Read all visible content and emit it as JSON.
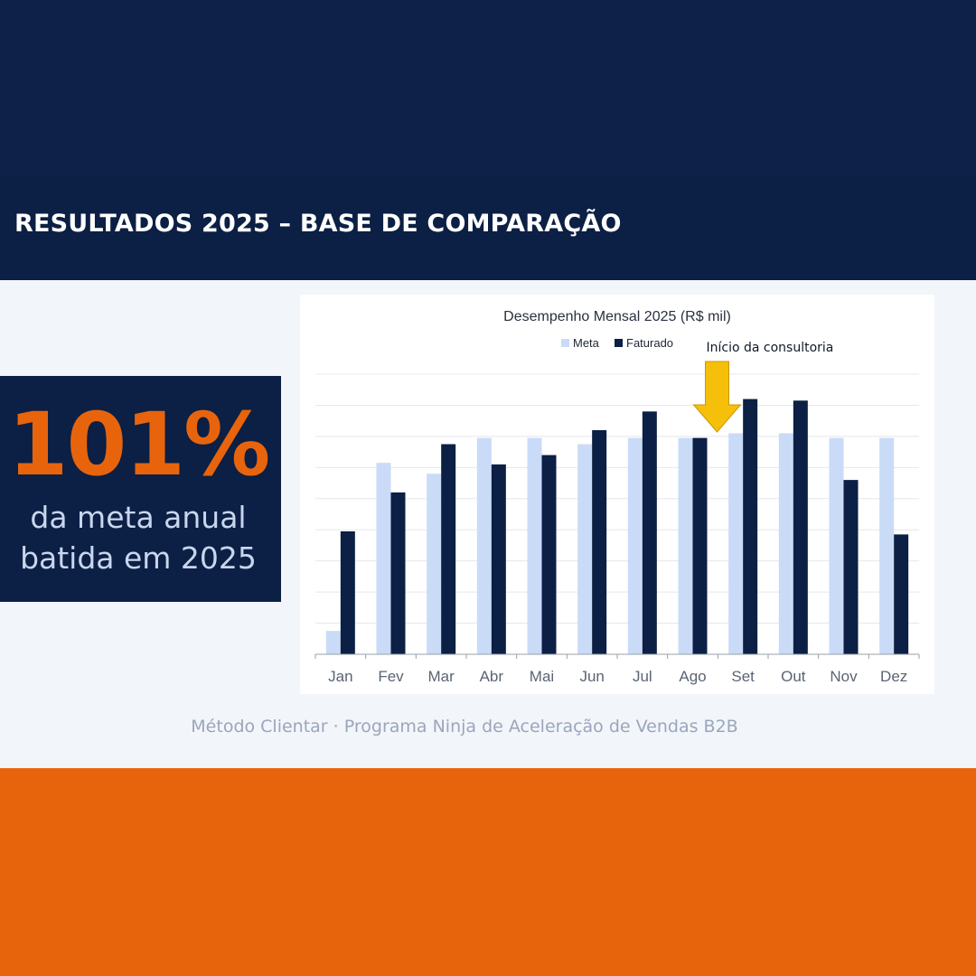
{
  "header": {
    "title": "RESULTADOS 2025 – BASE DE COMPARAÇÃO"
  },
  "kpi": {
    "value": "101%",
    "caption_line1": "da meta anual",
    "caption_line2": "batida em 2025"
  },
  "footer": {
    "text": "Método Clientar · Programa Ninja de Aceleração de Vendas B2B"
  },
  "colors": {
    "navy": "#0c1f44",
    "orange": "#e8640c",
    "meta": "#c9dbf7",
    "faturado": "#0c1f44",
    "arrow": "#f5bf0a"
  },
  "chart_data": {
    "type": "bar",
    "title": "Desempenho Mensal 2025 (R$ mil)",
    "xlabel": "",
    "ylabel": "",
    "ylim": [
      0,
      90
    ],
    "grid": true,
    "legend_position": "top",
    "categories": [
      "Jan",
      "Fev",
      "Mar",
      "Abr",
      "Mai",
      "Jun",
      "Jul",
      "Ago",
      "Set",
      "Out",
      "Nov",
      "Dez"
    ],
    "series": [
      {
        "name": "Meta",
        "color": "#c9dbf7",
        "values": [
          7.5,
          61.5,
          58,
          69.5,
          69.5,
          67.5,
          69.5,
          69.5,
          71,
          71,
          69.5,
          69.5
        ]
      },
      {
        "name": "Faturado",
        "color": "#0c1f44",
        "values": [
          39.5,
          52,
          67.5,
          61,
          64,
          72,
          78,
          69.5,
          82,
          81.5,
          56,
          38.5
        ]
      }
    ],
    "annotations": [
      {
        "text": "Início da consultoria",
        "category": "Ago",
        "style": "down-arrow"
      }
    ]
  }
}
